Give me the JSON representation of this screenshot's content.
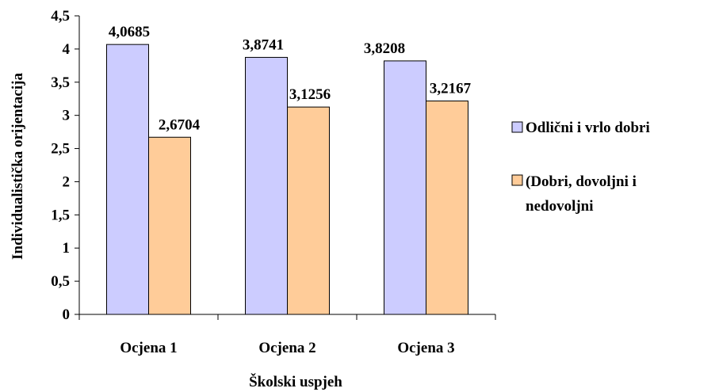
{
  "chart_data": {
    "type": "bar",
    "title": "",
    "xlabel": "Školski uspjeh",
    "ylabel": "Individualistička orijentacija",
    "ylim": [
      0,
      4.5
    ],
    "yticks": [
      0,
      0.5,
      1,
      1.5,
      2,
      2.5,
      3,
      3.5,
      4,
      4.5
    ],
    "ytick_labels": [
      "0",
      "0,5",
      "1",
      "1,5",
      "2",
      "2,5",
      "3",
      "3,5",
      "4",
      "4,5"
    ],
    "categories": [
      "Ocjena 1",
      "Ocjena 2",
      "Ocjena 3"
    ],
    "series": [
      {
        "name": "Odlični i vrlo dobri",
        "values": [
          4.0685,
          3.8741,
          3.8208
        ],
        "labels": [
          "4,0685",
          "3,8741",
          "3,8208"
        ],
        "color": "#ccccff"
      },
      {
        "name": "(Dobri, dovoljni i nedovoljni",
        "values": [
          2.6704,
          3.1256,
          3.2167
        ],
        "labels": [
          "2,6704",
          "3,1256",
          "3,2167"
        ],
        "color": "#ffcc99"
      }
    ],
    "legend_position": "right",
    "grid": false
  }
}
